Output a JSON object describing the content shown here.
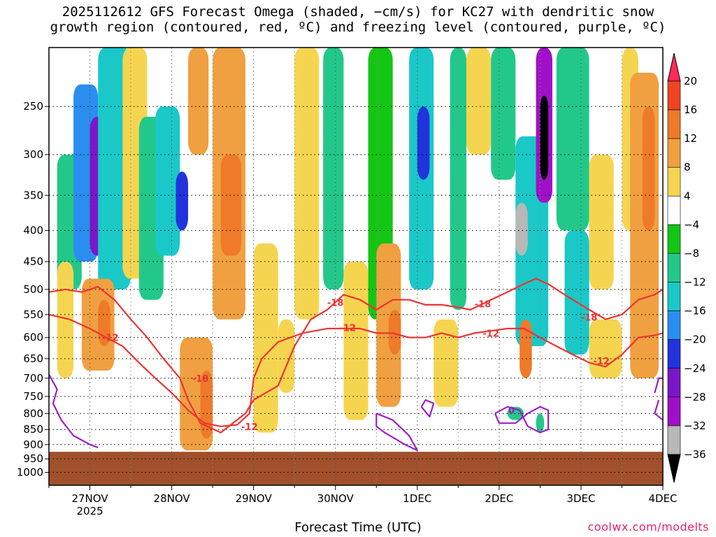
{
  "chart_data": {
    "type": "heatmap",
    "title": "2025112612 GFS Forecast Omega (shaded, −cm/s) for KC27 with dendritic snow\ngrowth region (contoured, red, ºC) and freezing level (contoured, purple, ºC)",
    "xlabel": "Forecast Time (UTC)",
    "credit": "coolwx.com/modelts",
    "y_ticks": [
      250,
      300,
      350,
      400,
      450,
      500,
      550,
      600,
      650,
      700,
      750,
      800,
      850,
      900,
      950,
      1000
    ],
    "y_tick_labels": [
      "250",
      "300",
      "350",
      "400",
      "450",
      "500",
      "550",
      "600",
      "650",
      "700",
      "750",
      "800",
      "850",
      "900",
      "950",
      "1000"
    ],
    "ylim": [
      200,
      1050
    ],
    "x_ticks": [
      {
        "day": 1,
        "label": "27NOV",
        "sublabel": "2025"
      },
      {
        "day": 2,
        "label": "28NOV",
        "sublabel": ""
      },
      {
        "day": 3,
        "label": "29NOV",
        "sublabel": ""
      },
      {
        "day": 4,
        "label": "30NOV",
        "sublabel": ""
      },
      {
        "day": 5,
        "label": "1DEC",
        "sublabel": ""
      },
      {
        "day": 6,
        "label": "2DEC",
        "sublabel": ""
      },
      {
        "day": 7,
        "label": "3DEC",
        "sublabel": ""
      },
      {
        "day": 8,
        "label": "4DEC",
        "sublabel": ""
      }
    ],
    "xlim": [
      0.5,
      8.0
    ],
    "colorbar": {
      "labels": [
        "20",
        "16",
        "12",
        "8",
        "4",
        "−4",
        "−8",
        "−12",
        "−16",
        "−20",
        "−24",
        "−28",
        "−32",
        "−36"
      ],
      "bins": [
        {
          "color": "#ff2a5a"
        },
        {
          "color": "#ee4422"
        },
        {
          "color": "#ee7a2a"
        },
        {
          "color": "#f0a040"
        },
        {
          "color": "#f5d550"
        },
        {
          "color": "#ffffff"
        },
        {
          "color": "#13c613"
        },
        {
          "color": "#22c88a"
        },
        {
          "color": "#1ac8c8"
        },
        {
          "color": "#2a8ef0"
        },
        {
          "color": "#2233dd"
        },
        {
          "color": "#7a18c8"
        },
        {
          "color": "#a010c8"
        },
        {
          "color": "#b8b8b8"
        },
        {
          "color": "#000000"
        }
      ]
    },
    "ground_color": "#a0502a",
    "ground_top_pressure": [
      925,
      928
    ],
    "cells": [
      {
        "x0": 0.6,
        "x1": 0.9,
        "p0": 300,
        "p1": 500,
        "v": -8
      },
      {
        "x0": 0.8,
        "x1": 1.1,
        "p0": 230,
        "p1": 450,
        "v": -16
      },
      {
        "x0": 1.0,
        "x1": 1.3,
        "p0": 260,
        "p1": 440,
        "v": -24
      },
      {
        "x0": 1.1,
        "x1": 1.5,
        "p0": 200,
        "p1": 500,
        "v": -12
      },
      {
        "x0": 0.6,
        "x1": 0.8,
        "p0": 450,
        "p1": 700,
        "v": 6
      },
      {
        "x0": 0.9,
        "x1": 1.3,
        "p0": 480,
        "p1": 680,
        "v": 10
      },
      {
        "x0": 1.1,
        "x1": 1.25,
        "p0": 520,
        "p1": 620,
        "v": 14
      },
      {
        "x0": 1.4,
        "x1": 1.7,
        "p0": 200,
        "p1": 480,
        "v": 6
      },
      {
        "x0": 1.6,
        "x1": 1.9,
        "p0": 260,
        "p1": 520,
        "v": -8
      },
      {
        "x0": 1.8,
        "x1": 2.1,
        "p0": 250,
        "p1": 440,
        "v": -14
      },
      {
        "x0": 2.05,
        "x1": 2.2,
        "p0": 320,
        "p1": 400,
        "v": -22
      },
      {
        "x0": 2.2,
        "x1": 2.45,
        "p0": 200,
        "p1": 300,
        "v": 10
      },
      {
        "x0": 2.1,
        "x1": 2.5,
        "p0": 600,
        "p1": 920,
        "v": 8
      },
      {
        "x0": 2.35,
        "x1": 2.5,
        "p0": 680,
        "p1": 880,
        "v": 14
      },
      {
        "x0": 2.5,
        "x1": 2.9,
        "p0": 200,
        "p1": 560,
        "v": 8
      },
      {
        "x0": 2.6,
        "x1": 2.85,
        "p0": 300,
        "p1": 440,
        "v": 14
      },
      {
        "x0": 3.0,
        "x1": 3.3,
        "p0": 420,
        "p1": 860,
        "v": 5
      },
      {
        "x0": 3.3,
        "x1": 3.5,
        "p0": 560,
        "p1": 740,
        "v": 6
      },
      {
        "x0": 3.5,
        "x1": 3.8,
        "p0": 200,
        "p1": 560,
        "v": 5
      },
      {
        "x0": 3.85,
        "x1": 4.1,
        "p0": 200,
        "p1": 500,
        "v": -8
      },
      {
        "x0": 4.1,
        "x1": 4.4,
        "p0": 450,
        "p1": 820,
        "v": 6
      },
      {
        "x0": 4.4,
        "x1": 4.7,
        "p0": 200,
        "p1": 560,
        "v": -6
      },
      {
        "x0": 4.5,
        "x1": 4.8,
        "p0": 420,
        "p1": 780,
        "v": 8
      },
      {
        "x0": 4.65,
        "x1": 4.8,
        "p0": 540,
        "p1": 640,
        "v": 12
      },
      {
        "x0": 4.9,
        "x1": 5.2,
        "p0": 200,
        "p1": 500,
        "v": -14
      },
      {
        "x0": 5.0,
        "x1": 5.15,
        "p0": 250,
        "p1": 330,
        "v": -20
      },
      {
        "x0": 5.2,
        "x1": 5.5,
        "p0": 560,
        "p1": 780,
        "v": 7
      },
      {
        "x0": 5.4,
        "x1": 5.6,
        "p0": 200,
        "p1": 540,
        "v": -10
      },
      {
        "x0": 5.6,
        "x1": 5.9,
        "p0": 200,
        "p1": 300,
        "v": 6
      },
      {
        "x0": 5.9,
        "x1": 6.2,
        "p0": 200,
        "p1": 330,
        "v": -8
      },
      {
        "x0": 6.2,
        "x1": 6.6,
        "p0": 280,
        "p1": 620,
        "v": -14
      },
      {
        "x0": 6.2,
        "x1": 6.35,
        "p0": 360,
        "p1": 440,
        "v": -32
      },
      {
        "x0": 6.45,
        "x1": 6.65,
        "p0": 200,
        "p1": 360,
        "v": -28
      },
      {
        "x0": 6.5,
        "x1": 6.6,
        "p0": 240,
        "p1": 330,
        "v": -40
      },
      {
        "x0": 6.25,
        "x1": 6.4,
        "p0": 560,
        "p1": 700,
        "v": 12
      },
      {
        "x0": 6.7,
        "x1": 7.1,
        "p0": 200,
        "p1": 400,
        "v": -8
      },
      {
        "x0": 6.8,
        "x1": 7.1,
        "p0": 400,
        "p1": 640,
        "v": -12
      },
      {
        "x0": 7.1,
        "x1": 7.4,
        "p0": 300,
        "p1": 500,
        "v": 5
      },
      {
        "x0": 7.1,
        "x1": 7.5,
        "p0": 560,
        "p1": 700,
        "v": 6
      },
      {
        "x0": 7.5,
        "x1": 7.7,
        "p0": 200,
        "p1": 400,
        "v": 5
      },
      {
        "x0": 7.6,
        "x1": 7.95,
        "p0": 220,
        "p1": 700,
        "v": 9
      },
      {
        "x0": 7.75,
        "x1": 7.9,
        "p0": 250,
        "p1": 400,
        "v": 14
      },
      {
        "x0": 6.1,
        "x1": 6.3,
        "p0": 780,
        "p1": 820,
        "v": -8
      },
      {
        "x0": 6.45,
        "x1": 6.55,
        "p0": 800,
        "p1": 860,
        "v": -8
      }
    ],
    "contours": [
      {
        "name": "-18",
        "color": "#ee3333",
        "kind": "dgz",
        "points": [
          [
            0.5,
            505
          ],
          [
            0.7,
            500
          ],
          [
            0.9,
            505
          ],
          [
            1.1,
            495
          ],
          [
            1.3,
            520
          ],
          [
            1.5,
            560
          ],
          [
            1.7,
            600
          ],
          [
            1.9,
            650
          ],
          [
            2.1,
            700
          ],
          [
            2.2,
            760
          ],
          [
            2.35,
            830
          ],
          [
            2.6,
            860
          ],
          [
            2.9,
            800
          ],
          [
            3.0,
            760
          ],
          [
            3.3,
            720
          ],
          [
            3.5,
            620
          ],
          [
            3.7,
            560
          ],
          [
            3.9,
            540
          ],
          [
            4.1,
            510
          ],
          [
            4.3,
            520
          ],
          [
            4.5,
            540
          ],
          [
            4.7,
            520
          ],
          [
            4.9,
            520
          ],
          [
            5.1,
            530
          ],
          [
            5.3,
            530
          ],
          [
            5.5,
            535
          ],
          [
            5.65,
            540
          ],
          [
            5.9,
            520
          ],
          [
            6.1,
            505
          ],
          [
            6.3,
            490
          ],
          [
            6.45,
            480
          ],
          [
            6.6,
            490
          ],
          [
            6.75,
            505
          ],
          [
            6.9,
            520
          ],
          [
            7.1,
            540
          ],
          [
            7.3,
            560
          ],
          [
            7.5,
            550
          ],
          [
            7.7,
            520
          ],
          [
            7.9,
            510
          ],
          [
            8.0,
            500
          ]
        ],
        "labels": [
          {
            "text": "-18",
            "x": 4.0,
            "p": 525
          },
          {
            "text": "-18",
            "x": 5.8,
            "p": 528
          },
          {
            "text": "-18",
            "x": 7.1,
            "p": 555
          },
          {
            "text": "-18",
            "x": 2.35,
            "p": 700
          }
        ]
      },
      {
        "name": "-12",
        "color": "#ee3333",
        "kind": "dgz",
        "points": [
          [
            0.5,
            550
          ],
          [
            0.75,
            560
          ],
          [
            1.0,
            580
          ],
          [
            1.2,
            600
          ],
          [
            1.4,
            620
          ],
          [
            1.6,
            660
          ],
          [
            1.8,
            700
          ],
          [
            2.0,
            740
          ],
          [
            2.2,
            790
          ],
          [
            2.4,
            830
          ],
          [
            2.6,
            840
          ],
          [
            2.8,
            835
          ],
          [
            2.95,
            800
          ],
          [
            3.0,
            700
          ],
          [
            3.1,
            650
          ],
          [
            3.3,
            610
          ],
          [
            3.6,
            590
          ],
          [
            3.9,
            580
          ],
          [
            4.1,
            580
          ],
          [
            4.3,
            580
          ],
          [
            4.5,
            590
          ],
          [
            4.7,
            590
          ],
          [
            4.9,
            600
          ],
          [
            5.1,
            600
          ],
          [
            5.3,
            590
          ],
          [
            5.5,
            600
          ],
          [
            5.7,
            590
          ],
          [
            5.9,
            585
          ],
          [
            6.1,
            580
          ],
          [
            6.3,
            580
          ],
          [
            6.5,
            600
          ],
          [
            6.7,
            620
          ],
          [
            6.9,
            640
          ],
          [
            7.1,
            660
          ],
          [
            7.3,
            670
          ],
          [
            7.5,
            640
          ],
          [
            7.7,
            600
          ],
          [
            7.9,
            595
          ],
          [
            8.0,
            590
          ]
        ],
        "labels": [
          {
            "text": "-12",
            "x": 1.25,
            "p": 600
          },
          {
            "text": "-12",
            "x": 4.15,
            "p": 578
          },
          {
            "text": "-12",
            "x": 5.9,
            "p": 590
          },
          {
            "text": "-12",
            "x": 7.25,
            "p": 655
          },
          {
            "text": "-12",
            "x": 2.95,
            "p": 840
          }
        ]
      },
      {
        "name": "0a",
        "color": "#9b20c8",
        "kind": "freeze",
        "points": [
          [
            0.5,
            690
          ],
          [
            0.6,
            730
          ],
          [
            0.55,
            770
          ],
          [
            0.65,
            820
          ],
          [
            0.8,
            870
          ],
          [
            1.0,
            900
          ],
          [
            1.1,
            910
          ]
        ],
        "labels": []
      },
      {
        "name": "0b",
        "color": "#9b20c8",
        "kind": "freeze",
        "points": [
          [
            4.5,
            800
          ],
          [
            4.7,
            820
          ],
          [
            4.9,
            870
          ],
          [
            5.0,
            920
          ],
          [
            4.85,
            900
          ],
          [
            4.6,
            860
          ],
          [
            4.5,
            840
          ],
          [
            4.5,
            800
          ]
        ],
        "labels": []
      },
      {
        "name": "0c",
        "color": "#9b20c8",
        "kind": "freeze",
        "points": [
          [
            5.95,
            800
          ],
          [
            6.1,
            780
          ],
          [
            6.25,
            790
          ],
          [
            6.35,
            840
          ],
          [
            6.5,
            860
          ],
          [
            6.6,
            850
          ],
          [
            6.6,
            790
          ],
          [
            6.5,
            780
          ],
          [
            6.35,
            800
          ],
          [
            6.2,
            830
          ],
          [
            6.0,
            830
          ],
          [
            5.95,
            800
          ]
        ],
        "labels": [
          {
            "text": "0",
            "x": 6.15,
            "p": 790
          }
        ]
      },
      {
        "name": "0d",
        "color": "#9b20c8",
        "kind": "freeze",
        "points": [
          [
            5.05,
            780
          ],
          [
            5.1,
            760
          ],
          [
            5.2,
            770
          ],
          [
            5.15,
            810
          ],
          [
            5.05,
            780
          ]
        ],
        "labels": []
      },
      {
        "name": "0e",
        "color": "#9b20c8",
        "kind": "freeze",
        "points": [
          [
            7.9,
            740
          ],
          [
            7.95,
            700
          ],
          [
            8.0,
            700
          ]
        ],
        "labels": []
      },
      {
        "name": "0f",
        "color": "#9b20c8",
        "kind": "freeze",
        "points": [
          [
            7.95,
            760
          ],
          [
            7.9,
            800
          ],
          [
            8.0,
            820
          ]
        ],
        "labels": []
      }
    ]
  }
}
